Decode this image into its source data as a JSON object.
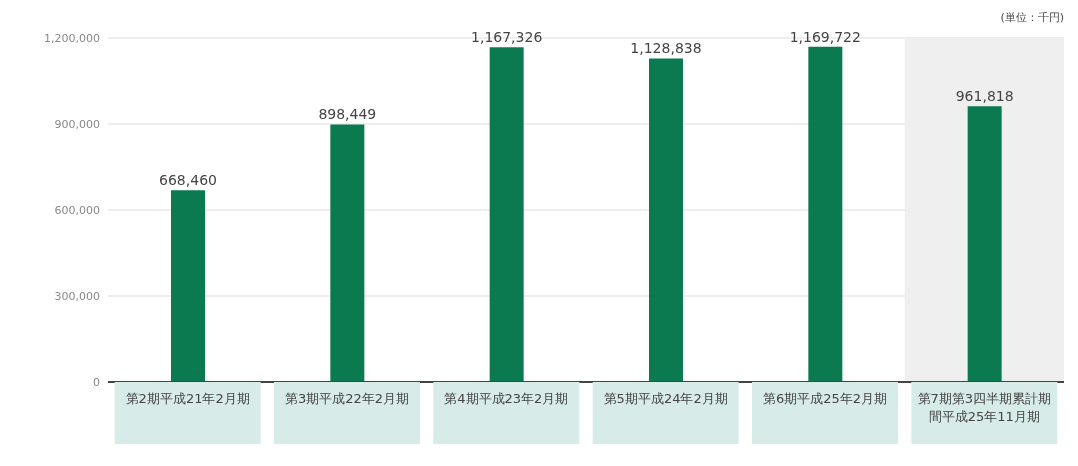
{
  "chart_data": {
    "type": "bar",
    "categories": [
      "第2期平成21年2月期",
      "第3期平成22年2月期",
      "第4期平成23年2月期",
      "第5期平成24年2月期",
      "第6期平成25年2月期",
      "第7期第3四半期累計期間平成25年11月期"
    ],
    "values": [
      668460,
      898449,
      1167326,
      1128838,
      1169722,
      961818
    ],
    "value_labels": [
      "668,460",
      "898,449",
      "1,167,326",
      "1,128,838",
      "1,169,722",
      "961,818"
    ],
    "color": "#0b7a50",
    "ylim": [
      0,
      1200000
    ],
    "yticks": [
      0,
      {
        "value": 300000,
        "label": "300,000"
      },
      {
        "value": 600000,
        "label": "600,000"
      },
      {
        "value": 900000,
        "label": "900,000"
      },
      {
        "value": 1200000,
        "label": "1,200,000"
      }
    ],
    "grid": "y",
    "bands": [
      {
        "axis": "x",
        "from": "第7期第3四半期累計期間平成25年11月期",
        "to": "第7期第3四半期累計期間平成25年11月期",
        "color": "#efefef"
      }
    ],
    "annotations": [
      "(単位：千円)"
    ]
  }
}
